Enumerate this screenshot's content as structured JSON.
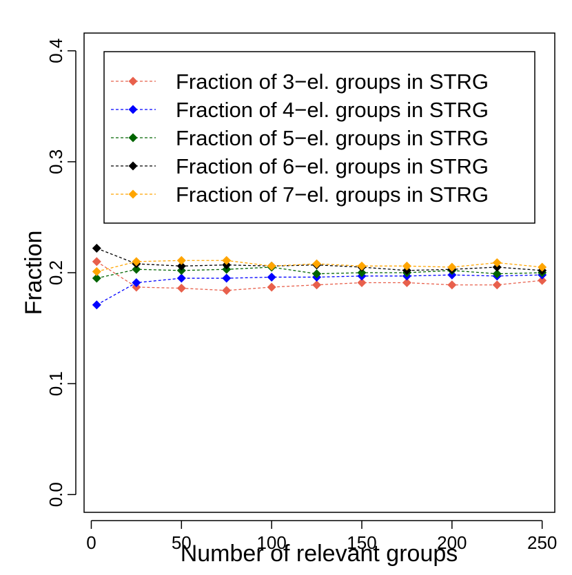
{
  "chart_data": {
    "type": "line",
    "title": "",
    "xlabel": "Number of relevant groups",
    "ylabel": "Fraction",
    "xlim": [
      -4,
      257
    ],
    "ylim": [
      -0.016,
      0.416
    ],
    "xticks": [
      0,
      50,
      100,
      150,
      200,
      250
    ],
    "yticks": [
      0.0,
      0.1,
      0.2,
      0.3,
      0.4
    ],
    "xtick_labels": [
      "0",
      "50",
      "100",
      "150",
      "200",
      "250"
    ],
    "ytick_labels": [
      "0.0",
      "0.1",
      "0.2",
      "0.3",
      "0.4"
    ],
    "grid": false,
    "legend_position": "top-right",
    "x": [
      3,
      25,
      50,
      75,
      100,
      125,
      150,
      175,
      200,
      225,
      250
    ],
    "series": [
      {
        "name": "Fraction of 3−el. groups in STRG",
        "color": "#E8604C",
        "values": [
          0.21,
          0.187,
          0.186,
          0.184,
          0.187,
          0.189,
          0.191,
          0.191,
          0.189,
          0.189,
          0.193
        ]
      },
      {
        "name": "Fraction of 4−el. groups in STRG",
        "color": "#0000FF",
        "values": [
          0.171,
          0.191,
          0.195,
          0.195,
          0.196,
          0.196,
          0.197,
          0.197,
          0.198,
          0.197,
          0.198
        ]
      },
      {
        "name": "Fraction of 5−el. groups in STRG",
        "color": "#006400",
        "values": [
          0.195,
          0.203,
          0.202,
          0.203,
          0.205,
          0.199,
          0.2,
          0.2,
          0.202,
          0.199,
          0.2
        ]
      },
      {
        "name": "Fraction of 6−el. groups in STRG",
        "color": "#000000",
        "values": [
          0.222,
          0.208,
          0.206,
          0.207,
          0.206,
          0.207,
          0.205,
          0.202,
          0.203,
          0.205,
          0.202
        ]
      },
      {
        "name": "Fraction of 7−el. groups in STRG",
        "color": "#FFA500",
        "values": [
          0.201,
          0.21,
          0.211,
          0.211,
          0.206,
          0.208,
          0.206,
          0.206,
          0.205,
          0.209,
          0.205
        ]
      }
    ]
  }
}
